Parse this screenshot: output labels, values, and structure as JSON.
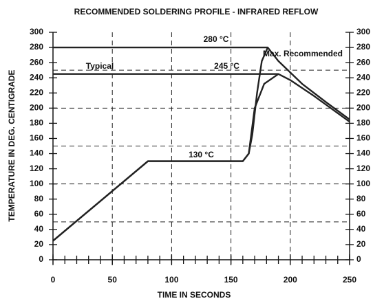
{
  "chart_data": {
    "type": "line",
    "title": "RECOMMENDED SOLDERING PROFILE - INFRARED REFLOW",
    "x_label": "TIME IN SECONDS",
    "y_label": "TEMPERATURE IN DEG. CENTIGRADE",
    "xlim": [
      0,
      250
    ],
    "xticks": [
      0,
      50,
      100,
      150,
      200,
      250
    ],
    "x_minor_step": 10,
    "ylim": [
      0,
      300
    ],
    "yticks": [
      0,
      20,
      40,
      60,
      80,
      100,
      120,
      140,
      160,
      180,
      200,
      220,
      240,
      260,
      280,
      300
    ],
    "y2lim": [
      0,
      300
    ],
    "y2ticks": [
      0,
      20,
      40,
      60,
      80,
      100,
      120,
      140,
      160,
      180,
      200,
      220,
      240,
      260,
      280,
      300
    ],
    "grid_x": [
      50,
      100,
      150,
      200
    ],
    "grid_y": [
      50,
      100,
      150,
      200,
      250
    ],
    "color": "#222222",
    "series": [
      {
        "name": "Max. Recommended",
        "color": "#222222",
        "x": [
          0,
          80,
          160,
          165,
          168,
          172,
          176,
          181,
          190,
          210,
          230,
          250
        ],
        "values": [
          25,
          130,
          130,
          140,
          165,
          220,
          262,
          280,
          262,
          232,
          208,
          185
        ]
      },
      {
        "name": "Typical",
        "color": "#222222",
        "x": [
          0,
          80,
          160,
          165,
          170,
          178,
          190,
          200,
          220,
          250
        ],
        "values": [
          25,
          130,
          130,
          140,
          200,
          232,
          245,
          237,
          216,
          182
        ]
      }
    ],
    "reference_lines": [
      {
        "value": 280,
        "x_end": 181,
        "label": "280 °C"
      },
      {
        "value": 245,
        "x_end": 190,
        "label": "245 °C"
      }
    ],
    "annotations": [
      {
        "text": "130 °C",
        "x": 125,
        "y": 138
      }
    ]
  }
}
